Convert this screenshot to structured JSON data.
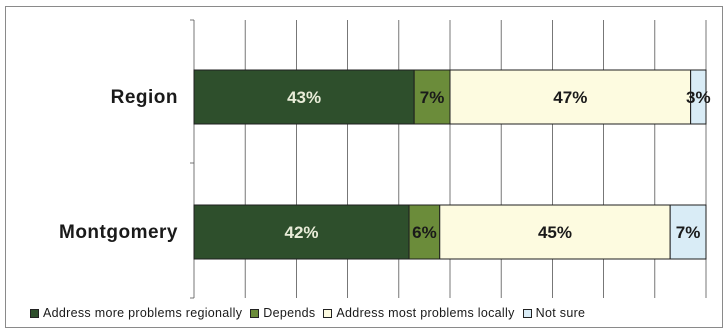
{
  "chart_data": {
    "type": "bar",
    "orientation": "horizontal",
    "stacked": true,
    "categories": [
      "Region",
      "Montgomery"
    ],
    "series": [
      {
        "name": "Address more problems regionally",
        "values": [
          43,
          42
        ],
        "labels": [
          "43%",
          "42%"
        ],
        "color": "#2e4f2c",
        "label_color": "#e8ecd8"
      },
      {
        "name": "Depends",
        "values": [
          7,
          6
        ],
        "labels": [
          "7%",
          "6%"
        ],
        "color": "#6b8c3a",
        "label_color": "#1a1a1a"
      },
      {
        "name": "Address most problems locally",
        "values": [
          47,
          45
        ],
        "labels": [
          "47%",
          "45%"
        ],
        "color": "#fdfbe0",
        "label_color": "#1a1a1a"
      },
      {
        "name": "Not sure",
        "values": [
          3,
          7
        ],
        "labels": [
          "3%",
          "7%"
        ],
        "color": "#d9ecf6",
        "label_color": "#1a1a1a"
      }
    ],
    "xlim": [
      0,
      100
    ],
    "grid": true,
    "legend_position": "bottom"
  }
}
